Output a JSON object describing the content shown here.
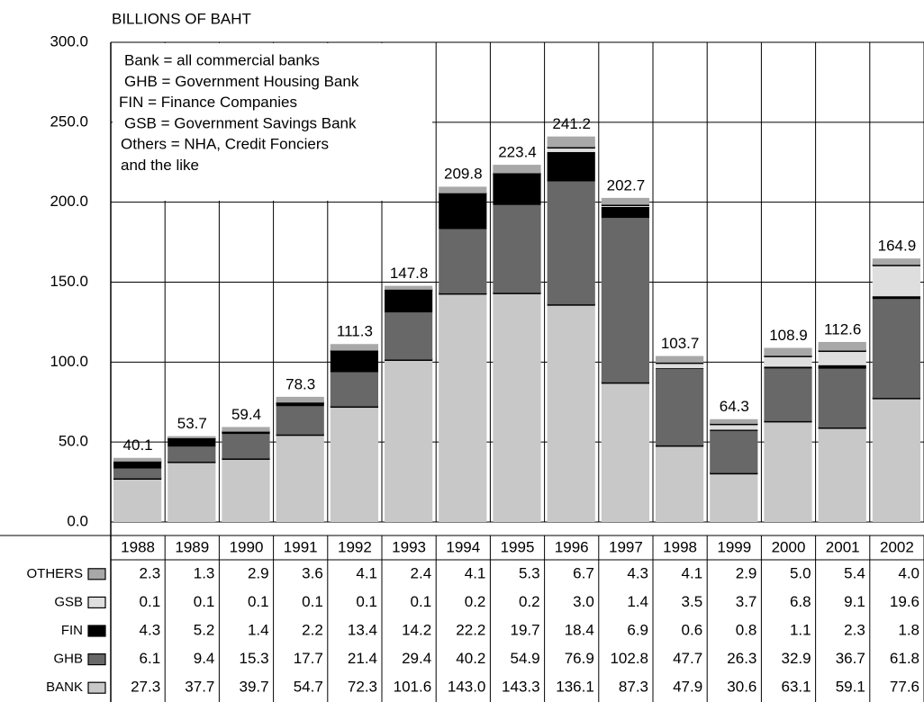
{
  "chart_data": {
    "type": "stacked_bar",
    "axis_title": "BILLIONS OF BAHT",
    "notes": [
      "Bank = all commercial banks",
      "GHB = Government Housing Bank",
      "FIN = Finance Companies",
      "GSB = Government Savings Bank",
      "Others = NHA, Credit Fonciers",
      "and the like"
    ],
    "categories": [
      "1988",
      "1989",
      "1990",
      "1991",
      "1992",
      "1993",
      "1994",
      "1995",
      "1996",
      "1997",
      "1998",
      "1999",
      "2000",
      "2001",
      "2002"
    ],
    "ylim": [
      0,
      300
    ],
    "yticks": [
      {
        "value": 0,
        "label": "0.0"
      },
      {
        "value": 50,
        "label": "50.0"
      },
      {
        "value": 100,
        "label": "100.0"
      },
      {
        "value": 150,
        "label": "150.0"
      },
      {
        "value": 200,
        "label": "200.0"
      },
      {
        "value": 250,
        "label": "250.0"
      },
      {
        "value": 300,
        "label": "300.0"
      }
    ],
    "grid": true,
    "totals": [
      40.1,
      53.7,
      59.4,
      78.3,
      111.3,
      147.8,
      209.8,
      223.4,
      241.2,
      202.7,
      103.7,
      64.3,
      108.9,
      112.6,
      164.9
    ],
    "series": [
      {
        "name": "BANK",
        "color": "#c8c8c8",
        "values": [
          27.3,
          37.7,
          39.7,
          54.7,
          72.3,
          101.6,
          143.0,
          143.3,
          136.1,
          87.3,
          47.9,
          30.6,
          63.1,
          59.1,
          77.6
        ],
        "value_labels": [
          "27.3",
          "37.7",
          "39.7",
          "54.7",
          "72.3",
          "101.6",
          "143.0",
          "143.3",
          "136.1",
          "87.3",
          "47.9",
          "30.6",
          "63.1",
          "59.1",
          "77.6"
        ]
      },
      {
        "name": "GHB",
        "color": "#686868",
        "values": [
          6.1,
          9.4,
          15.3,
          17.7,
          21.4,
          29.4,
          40.2,
          54.9,
          76.9,
          102.8,
          47.7,
          26.3,
          32.9,
          36.7,
          61.8
        ],
        "value_labels": [
          "6.1",
          "9.4",
          "15.3",
          "17.7",
          "21.4",
          "29.4",
          "40.2",
          "54.9",
          "76.9",
          "102.8",
          "47.7",
          "26.3",
          "32.9",
          "36.7",
          "61.8"
        ]
      },
      {
        "name": "FIN",
        "color": "#000000",
        "values": [
          4.3,
          5.2,
          1.4,
          2.2,
          13.4,
          14.2,
          22.2,
          19.7,
          18.4,
          6.9,
          0.6,
          0.8,
          1.1,
          2.3,
          1.8
        ],
        "value_labels": [
          "4.3",
          "5.2",
          "1.4",
          "2.2",
          "13.4",
          "14.2",
          "22.2",
          "19.7",
          "18.4",
          "6.9",
          "0.6",
          "0.8",
          "1.1",
          "2.3",
          "1.8"
        ]
      },
      {
        "name": "GSB",
        "color": "#dedede",
        "values": [
          0.1,
          0.1,
          0.1,
          0.1,
          0.1,
          0.1,
          0.2,
          0.2,
          3.0,
          1.4,
          3.5,
          3.7,
          6.8,
          9.1,
          19.6
        ],
        "value_labels": [
          "0.1",
          "0.1",
          "0.1",
          "0.1",
          "0.1",
          "0.1",
          "0.2",
          "0.2",
          "3.0",
          "1.4",
          "3.5",
          "3.7",
          "6.8",
          "9.1",
          "19.6"
        ]
      },
      {
        "name": "OTHERS",
        "color": "#a8a8a8",
        "values": [
          2.3,
          1.3,
          2.9,
          3.6,
          4.1,
          2.4,
          4.1,
          5.3,
          6.7,
          4.3,
          4.1,
          2.9,
          5.0,
          5.4,
          4.0
        ],
        "value_labels": [
          "2.3",
          "1.3",
          "2.9",
          "3.6",
          "4.1",
          "2.4",
          "4.1",
          "5.3",
          "6.7",
          "4.3",
          "4.1",
          "2.9",
          "5.0",
          "5.4",
          "4.0"
        ]
      }
    ]
  }
}
